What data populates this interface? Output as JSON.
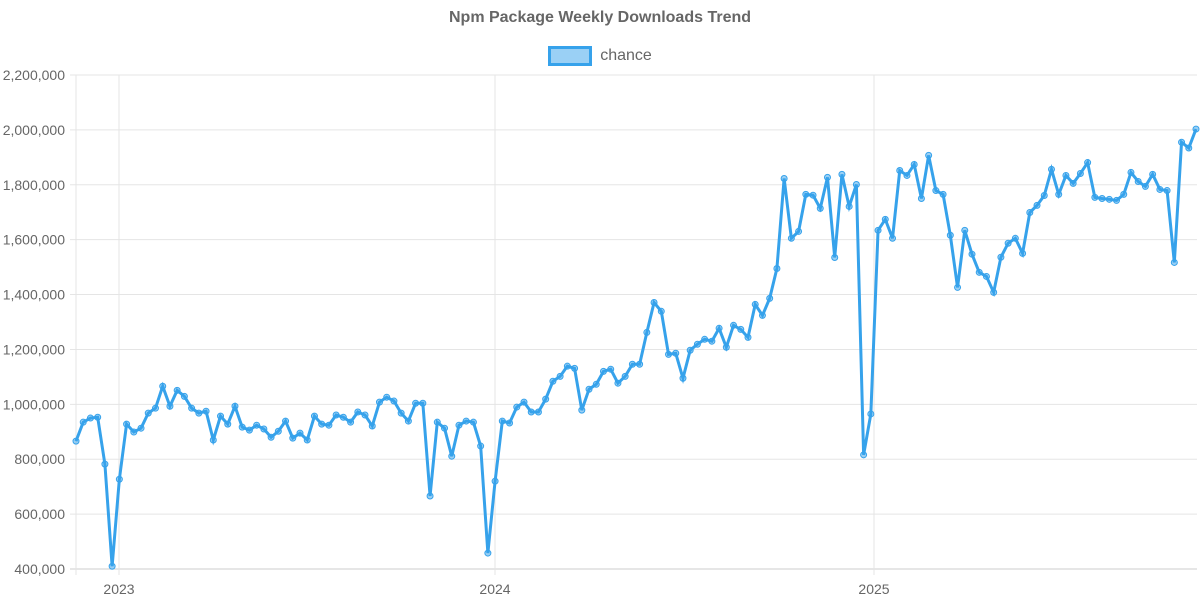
{
  "chart_data": {
    "type": "line",
    "title": "Npm Package Weekly Downloads Trend",
    "xlabel": "",
    "ylabel": "",
    "ylim": [
      400000,
      2200000
    ],
    "y_ticks": [
      "2,200,000",
      "2,000,000",
      "1,800,000",
      "1,600,000",
      "1,400,000",
      "1,200,000",
      "1,000,000",
      "800,000",
      "600,000",
      "400,000"
    ],
    "x_ticks": [
      "2023",
      "2024",
      "2025"
    ],
    "grid": true,
    "legend_position": "top",
    "series": [
      {
        "name": "chance",
        "color": "#36a2eb",
        "values": [
          866000,
          935000,
          950000,
          953000,
          782000,
          410000,
          727000,
          928000,
          899000,
          913000,
          968000,
          986000,
          1066000,
          993000,
          1051000,
          1029000,
          986000,
          968000,
          975000,
          870000,
          957000,
          928000,
          993000,
          917000,
          906000,
          924000,
          910000,
          880000,
          902000,
          939000,
          877000,
          895000,
          870000,
          957000,
          928000,
          924000,
          961000,
          953000,
          935000,
          972000,
          961000,
          921000,
          1008000,
          1026000,
          1012000,
          968000,
          939000,
          1004000,
          1004000,
          666000,
          935000,
          913000,
          811000,
          924000,
          939000,
          935000,
          848000,
          458000,
          720000,
          939000,
          932000,
          990000,
          1008000,
          972000,
          972000,
          1019000,
          1084000,
          1102000,
          1139000,
          1131000,
          979000,
          1055000,
          1073000,
          1120000,
          1128000,
          1077000,
          1102000,
          1146000,
          1146000,
          1262000,
          1371000,
          1339000,
          1182000,
          1186000,
          1095000,
          1197000,
          1219000,
          1237000,
          1230000,
          1277000,
          1208000,
          1288000,
          1273000,
          1244000,
          1364000,
          1324000,
          1386000,
          1495000,
          1823000,
          1605000,
          1630000,
          1765000,
          1762000,
          1714000,
          1827000,
          1535000,
          1838000,
          1721000,
          1801000,
          816000,
          965000,
          1634000,
          1674000,
          1605000,
          1852000,
          1834000,
          1874000,
          1750000,
          1907000,
          1779000,
          1765000,
          1616000,
          1426000,
          1634000,
          1547000,
          1481000,
          1466000,
          1408000,
          1536000,
          1587000,
          1605000,
          1550000,
          1699000,
          1725000,
          1761000,
          1856000,
          1765000,
          1834000,
          1805000,
          1841000,
          1881000,
          1754000,
          1750000,
          1747000,
          1743000,
          1765000,
          1845000,
          1812000,
          1794000,
          1838000,
          1783000,
          1779000,
          1517000,
          1955000,
          1934000,
          2003000
        ]
      }
    ]
  },
  "chart": {
    "title": "Npm Package Weekly Downloads Trend",
    "legend": [
      {
        "label": "chance",
        "color": "#36a2eb"
      }
    ]
  }
}
